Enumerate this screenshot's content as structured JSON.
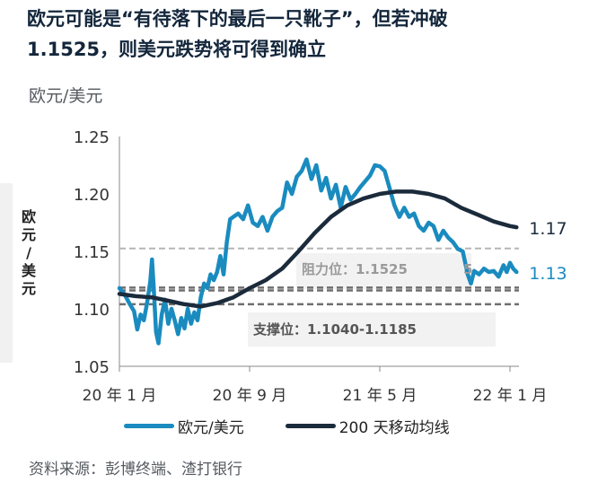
{
  "title_line1": "欧元可能是“有待落下的最后一只靴子”，但若冲破",
  "title_line2": "1.1525，则美元跌势将可得到确立",
  "unit_label": "欧元/美元",
  "source": "资料来源：彭博终端、渣打银行",
  "chart_data": {
    "type": "line",
    "ylabel": "欧元/美元",
    "ylim": [
      1.05,
      1.25
    ],
    "yticks": [
      "1.25",
      "1.20",
      "1.15",
      "1.10",
      "1.05"
    ],
    "yticks_values": [
      1.25,
      1.2,
      1.15,
      1.1,
      1.05
    ],
    "xlim": [
      0,
      25
    ],
    "xticks": [
      {
        "label": "20 年 1 月",
        "t": 0
      },
      {
        "label": "20 年 9 月",
        "t": 8
      },
      {
        "label": "21 年 5 月",
        "t": 16
      },
      {
        "label": "22 年 1 月",
        "t": 24
      }
    ],
    "series": [
      {
        "name": "欧元/美元",
        "color": "#1a8bbf",
        "end_label": "1.13",
        "points": [
          [
            0,
            1.118
          ],
          [
            0.3,
            1.113
          ],
          [
            0.6,
            1.105
          ],
          [
            0.9,
            1.098
          ],
          [
            1.1,
            1.082
          ],
          [
            1.3,
            1.095
          ],
          [
            1.5,
            1.09
          ],
          [
            1.7,
            1.105
          ],
          [
            1.9,
            1.124
          ],
          [
            2.0,
            1.143
          ],
          [
            2.1,
            1.12
          ],
          [
            2.25,
            1.08
          ],
          [
            2.4,
            1.07
          ],
          [
            2.6,
            1.095
          ],
          [
            2.8,
            1.108
          ],
          [
            3.0,
            1.087
          ],
          [
            3.2,
            1.1
          ],
          [
            3.4,
            1.09
          ],
          [
            3.6,
            1.078
          ],
          [
            3.8,
            1.092
          ],
          [
            4.0,
            1.083
          ],
          [
            4.2,
            1.1
          ],
          [
            4.4,
            1.087
          ],
          [
            4.6,
            1.097
          ],
          [
            4.8,
            1.09
          ],
          [
            5.0,
            1.11
          ],
          [
            5.2,
            1.122
          ],
          [
            5.4,
            1.118
          ],
          [
            5.6,
            1.13
          ],
          [
            5.8,
            1.125
          ],
          [
            6.0,
            1.132
          ],
          [
            6.2,
            1.146
          ],
          [
            6.4,
            1.13
          ],
          [
            6.6,
            1.158
          ],
          [
            6.8,
            1.178
          ],
          [
            7.0,
            1.18
          ],
          [
            7.3,
            1.183
          ],
          [
            7.6,
            1.178
          ],
          [
            7.9,
            1.19
          ],
          [
            8.2,
            1.175
          ],
          [
            8.5,
            1.172
          ],
          [
            8.8,
            1.18
          ],
          [
            9.1,
            1.168
          ],
          [
            9.4,
            1.18
          ],
          [
            9.7,
            1.185
          ],
          [
            10.0,
            1.188
          ],
          [
            10.3,
            1.21
          ],
          [
            10.6,
            1.2
          ],
          [
            10.9,
            1.215
          ],
          [
            11.2,
            1.22
          ],
          [
            11.5,
            1.23
          ],
          [
            11.8,
            1.213
          ],
          [
            12.1,
            1.225
          ],
          [
            12.4,
            1.203
          ],
          [
            12.7,
            1.214
          ],
          [
            13.0,
            1.196
          ],
          [
            13.3,
            1.208
          ],
          [
            13.6,
            1.188
          ],
          [
            13.9,
            1.206
          ],
          [
            14.2,
            1.195
          ],
          [
            14.5,
            1.2
          ],
          [
            14.8,
            1.206
          ],
          [
            15.1,
            1.211
          ],
          [
            15.4,
            1.216
          ],
          [
            15.7,
            1.225
          ],
          [
            16.0,
            1.224
          ],
          [
            16.3,
            1.22
          ],
          [
            16.6,
            1.205
          ],
          [
            16.9,
            1.19
          ],
          [
            17.2,
            1.18
          ],
          [
            17.5,
            1.188
          ],
          [
            17.8,
            1.18
          ],
          [
            18.1,
            1.183
          ],
          [
            18.4,
            1.172
          ],
          [
            18.7,
            1.168
          ],
          [
            19.0,
            1.175
          ],
          [
            19.3,
            1.172
          ],
          [
            19.6,
            1.16
          ],
          [
            19.9,
            1.168
          ],
          [
            20.2,
            1.162
          ],
          [
            20.5,
            1.158
          ],
          [
            20.8,
            1.152
          ],
          [
            21.1,
            1.15
          ],
          [
            21.4,
            1.13
          ],
          [
            21.6,
            1.122
          ],
          [
            21.8,
            1.133
          ],
          [
            22.1,
            1.13
          ],
          [
            22.4,
            1.135
          ],
          [
            22.7,
            1.132
          ],
          [
            23.0,
            1.133
          ],
          [
            23.3,
            1.128
          ],
          [
            23.6,
            1.138
          ],
          [
            23.8,
            1.132
          ],
          [
            24.0,
            1.14
          ],
          [
            24.2,
            1.135
          ],
          [
            24.4,
            1.132
          ]
        ]
      },
      {
        "name": "200 天移动均线",
        "color": "#1b2b3c",
        "end_label": "1.17",
        "points": [
          [
            0,
            1.113
          ],
          [
            1,
            1.111
          ],
          [
            2,
            1.11
          ],
          [
            3,
            1.107
          ],
          [
            4,
            1.104
          ],
          [
            5,
            1.102
          ],
          [
            6,
            1.105
          ],
          [
            7,
            1.11
          ],
          [
            8,
            1.118
          ],
          [
            9,
            1.125
          ],
          [
            10,
            1.135
          ],
          [
            11,
            1.15
          ],
          [
            12,
            1.166
          ],
          [
            13,
            1.18
          ],
          [
            14,
            1.19
          ],
          [
            15,
            1.196
          ],
          [
            16,
            1.2
          ],
          [
            17,
            1.202
          ],
          [
            18,
            1.202
          ],
          [
            19,
            1.2
          ],
          [
            20,
            1.196
          ],
          [
            21,
            1.188
          ],
          [
            22,
            1.182
          ],
          [
            23,
            1.176
          ],
          [
            24,
            1.172
          ],
          [
            24.4,
            1.171
          ]
        ]
      }
    ],
    "reference_lines": [
      {
        "name": "阻力位",
        "value": 1.1525,
        "style": "light"
      },
      {
        "name": "支撑上限",
        "value": 1.1185,
        "style": "dark"
      },
      {
        "name": "支撑下限",
        "value": 1.104,
        "style": "dark"
      },
      {
        "name": "支撑参考",
        "value": 1.116,
        "style": "dark"
      }
    ],
    "annotations": {
      "resistance": "阻力位：1.1525",
      "support": "支撑位：1.1040-1.1185",
      "resistance_tail": "5"
    }
  },
  "legend": {
    "series1": "欧元/美元",
    "series2": "200 天移动均线"
  },
  "colors": {
    "eurusd": "#1a8bbf",
    "ma200": "#1b2b3c",
    "ref_light": "#b5b5b5",
    "ref_dark": "#6e6e6e"
  }
}
